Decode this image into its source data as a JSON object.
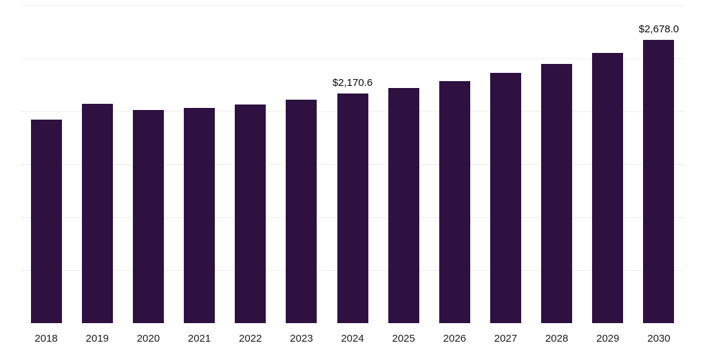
{
  "chart_data": {
    "type": "bar",
    "title": "",
    "xlabel": "",
    "ylabel": "",
    "ylim": [
      0,
      3000
    ],
    "gridline_step": 500,
    "grid": true,
    "legend": false,
    "bar_color": "#2e1140",
    "grid_color": "#ededed",
    "categories": [
      "2018",
      "2019",
      "2020",
      "2021",
      "2022",
      "2023",
      "2024",
      "2025",
      "2026",
      "2027",
      "2028",
      "2029",
      "2030"
    ],
    "values": [
      1925,
      2070,
      2015,
      2035,
      2065,
      2110,
      2170.6,
      2220,
      2285,
      2365,
      2450,
      2555,
      2678
    ],
    "annotations": [
      {
        "category": "2024",
        "text": "$2,170.6"
      },
      {
        "category": "2030",
        "text": "$2,678.0"
      }
    ]
  }
}
